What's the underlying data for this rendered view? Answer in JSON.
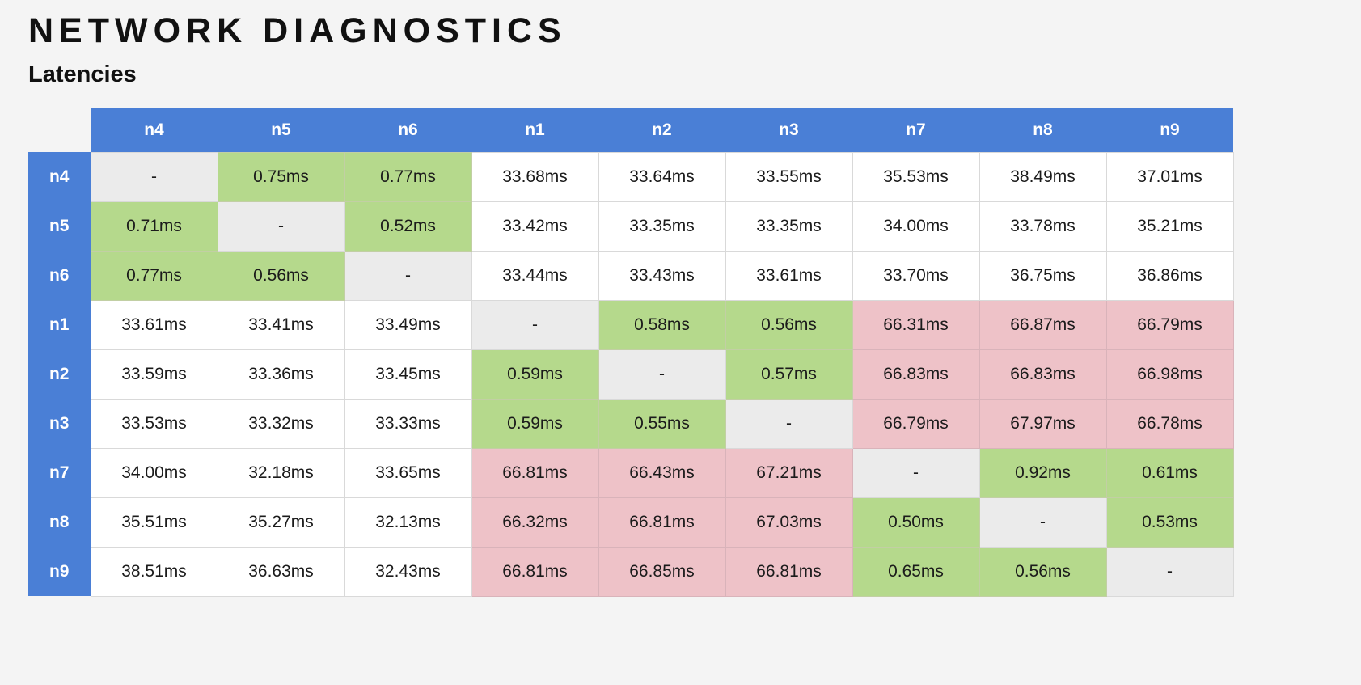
{
  "page": {
    "title": "NETWORK DIAGNOSTICS",
    "section_title": "Latencies"
  },
  "colors": {
    "header_blue": "#4a7fd6",
    "fast_green": "#b5d98c",
    "slow_pink": "#eec2c8",
    "self_gray": "#ebebeb",
    "page_background": "#f4f4f4",
    "cell_border": "#d9d9d9",
    "text_color": "#1b1b1b"
  },
  "chart_data": {
    "type": "table",
    "title": "Latencies",
    "description_of_states": "self = gray diagonal dash, fast = green sub-millisecond, normal = white ~33ms, slow = pink ~66ms",
    "columns": [
      "n4",
      "n5",
      "n6",
      "n1",
      "n2",
      "n3",
      "n7",
      "n8",
      "n9"
    ],
    "rows": [
      {
        "label": "n4",
        "values": [
          "-",
          "0.75ms",
          "0.77ms",
          "33.68ms",
          "33.64ms",
          "33.55ms",
          "35.53ms",
          "38.49ms",
          "37.01ms"
        ],
        "states": [
          "self",
          "fast",
          "fast",
          "normal",
          "normal",
          "normal",
          "normal",
          "normal",
          "normal"
        ]
      },
      {
        "label": "n5",
        "values": [
          "0.71ms",
          "-",
          "0.52ms",
          "33.42ms",
          "33.35ms",
          "33.35ms",
          "34.00ms",
          "33.78ms",
          "35.21ms"
        ],
        "states": [
          "fast",
          "self",
          "fast",
          "normal",
          "normal",
          "normal",
          "normal",
          "normal",
          "normal"
        ]
      },
      {
        "label": "n6",
        "values": [
          "0.77ms",
          "0.56ms",
          "-",
          "33.44ms",
          "33.43ms",
          "33.61ms",
          "33.70ms",
          "36.75ms",
          "36.86ms"
        ],
        "states": [
          "fast",
          "fast",
          "self",
          "normal",
          "normal",
          "normal",
          "normal",
          "normal",
          "normal"
        ]
      },
      {
        "label": "n1",
        "values": [
          "33.61ms",
          "33.41ms",
          "33.49ms",
          "-",
          "0.58ms",
          "0.56ms",
          "66.31ms",
          "66.87ms",
          "66.79ms"
        ],
        "states": [
          "normal",
          "normal",
          "normal",
          "self",
          "fast",
          "fast",
          "slow",
          "slow",
          "slow"
        ]
      },
      {
        "label": "n2",
        "values": [
          "33.59ms",
          "33.36ms",
          "33.45ms",
          "0.59ms",
          "-",
          "0.57ms",
          "66.83ms",
          "66.83ms",
          "66.98ms"
        ],
        "states": [
          "normal",
          "normal",
          "normal",
          "fast",
          "self",
          "fast",
          "slow",
          "slow",
          "slow"
        ]
      },
      {
        "label": "n3",
        "values": [
          "33.53ms",
          "33.32ms",
          "33.33ms",
          "0.59ms",
          "0.55ms",
          "-",
          "66.79ms",
          "67.97ms",
          "66.78ms"
        ],
        "states": [
          "normal",
          "normal",
          "normal",
          "fast",
          "fast",
          "self",
          "slow",
          "slow",
          "slow"
        ]
      },
      {
        "label": "n7",
        "values": [
          "34.00ms",
          "32.18ms",
          "33.65ms",
          "66.81ms",
          "66.43ms",
          "67.21ms",
          "-",
          "0.92ms",
          "0.61ms"
        ],
        "states": [
          "normal",
          "normal",
          "normal",
          "slow",
          "slow",
          "slow",
          "self",
          "fast",
          "fast"
        ]
      },
      {
        "label": "n8",
        "values": [
          "35.51ms",
          "35.27ms",
          "32.13ms",
          "66.32ms",
          "66.81ms",
          "67.03ms",
          "0.50ms",
          "-",
          "0.53ms"
        ],
        "states": [
          "normal",
          "normal",
          "normal",
          "slow",
          "slow",
          "slow",
          "fast",
          "self",
          "fast"
        ]
      },
      {
        "label": "n9",
        "values": [
          "38.51ms",
          "36.63ms",
          "32.43ms",
          "66.81ms",
          "66.85ms",
          "66.81ms",
          "0.65ms",
          "0.56ms",
          "-"
        ],
        "states": [
          "normal",
          "normal",
          "normal",
          "slow",
          "slow",
          "slow",
          "fast",
          "fast",
          "self"
        ]
      }
    ]
  }
}
